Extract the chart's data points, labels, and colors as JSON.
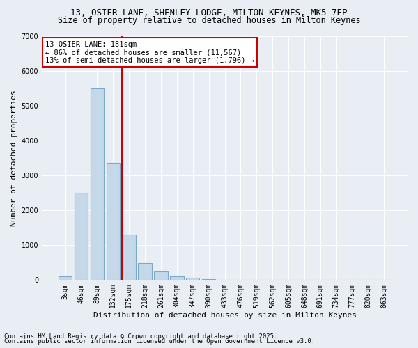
{
  "title_line1": "13, OSIER LANE, SHENLEY LODGE, MILTON KEYNES, MK5 7EP",
  "title_line2": "Size of property relative to detached houses in Milton Keynes",
  "xlabel": "Distribution of detached houses by size in Milton Keynes",
  "ylabel": "Number of detached properties",
  "categories": [
    "3sqm",
    "46sqm",
    "89sqm",
    "132sqm",
    "175sqm",
    "218sqm",
    "261sqm",
    "304sqm",
    "347sqm",
    "390sqm",
    "433sqm",
    "476sqm",
    "519sqm",
    "562sqm",
    "605sqm",
    "648sqm",
    "691sqm",
    "734sqm",
    "777sqm",
    "820sqm",
    "863sqm"
  ],
  "values": [
    90,
    2500,
    5500,
    3350,
    1300,
    480,
    230,
    90,
    50,
    10,
    0,
    0,
    0,
    0,
    0,
    0,
    0,
    0,
    0,
    0,
    0
  ],
  "bar_color": "#c5d8ea",
  "bar_edge_color": "#7aaac8",
  "vline_index": 4,
  "vline_color": "#cc0000",
  "annotation_text": "13 OSIER LANE: 181sqm\n← 86% of detached houses are smaller (11,567)\n13% of semi-detached houses are larger (1,796) →",
  "annotation_box_facecolor": "#ffffff",
  "annotation_box_edgecolor": "#cc0000",
  "footer_line1": "Contains HM Land Registry data © Crown copyright and database right 2025.",
  "footer_line2": "Contains public sector information licensed under the Open Government Licence v3.0.",
  "background_color": "#e8eef4",
  "plot_background_color": "#e8eef4",
  "ylim": [
    0,
    7000
  ],
  "yticks": [
    0,
    1000,
    2000,
    3000,
    4000,
    5000,
    6000,
    7000
  ],
  "grid_color": "#ffffff",
  "title_fontsize": 9,
  "subtitle_fontsize": 8.5,
  "axis_label_fontsize": 8,
  "tick_fontsize": 7,
  "annotation_fontsize": 7.5,
  "footer_fontsize": 6.5
}
